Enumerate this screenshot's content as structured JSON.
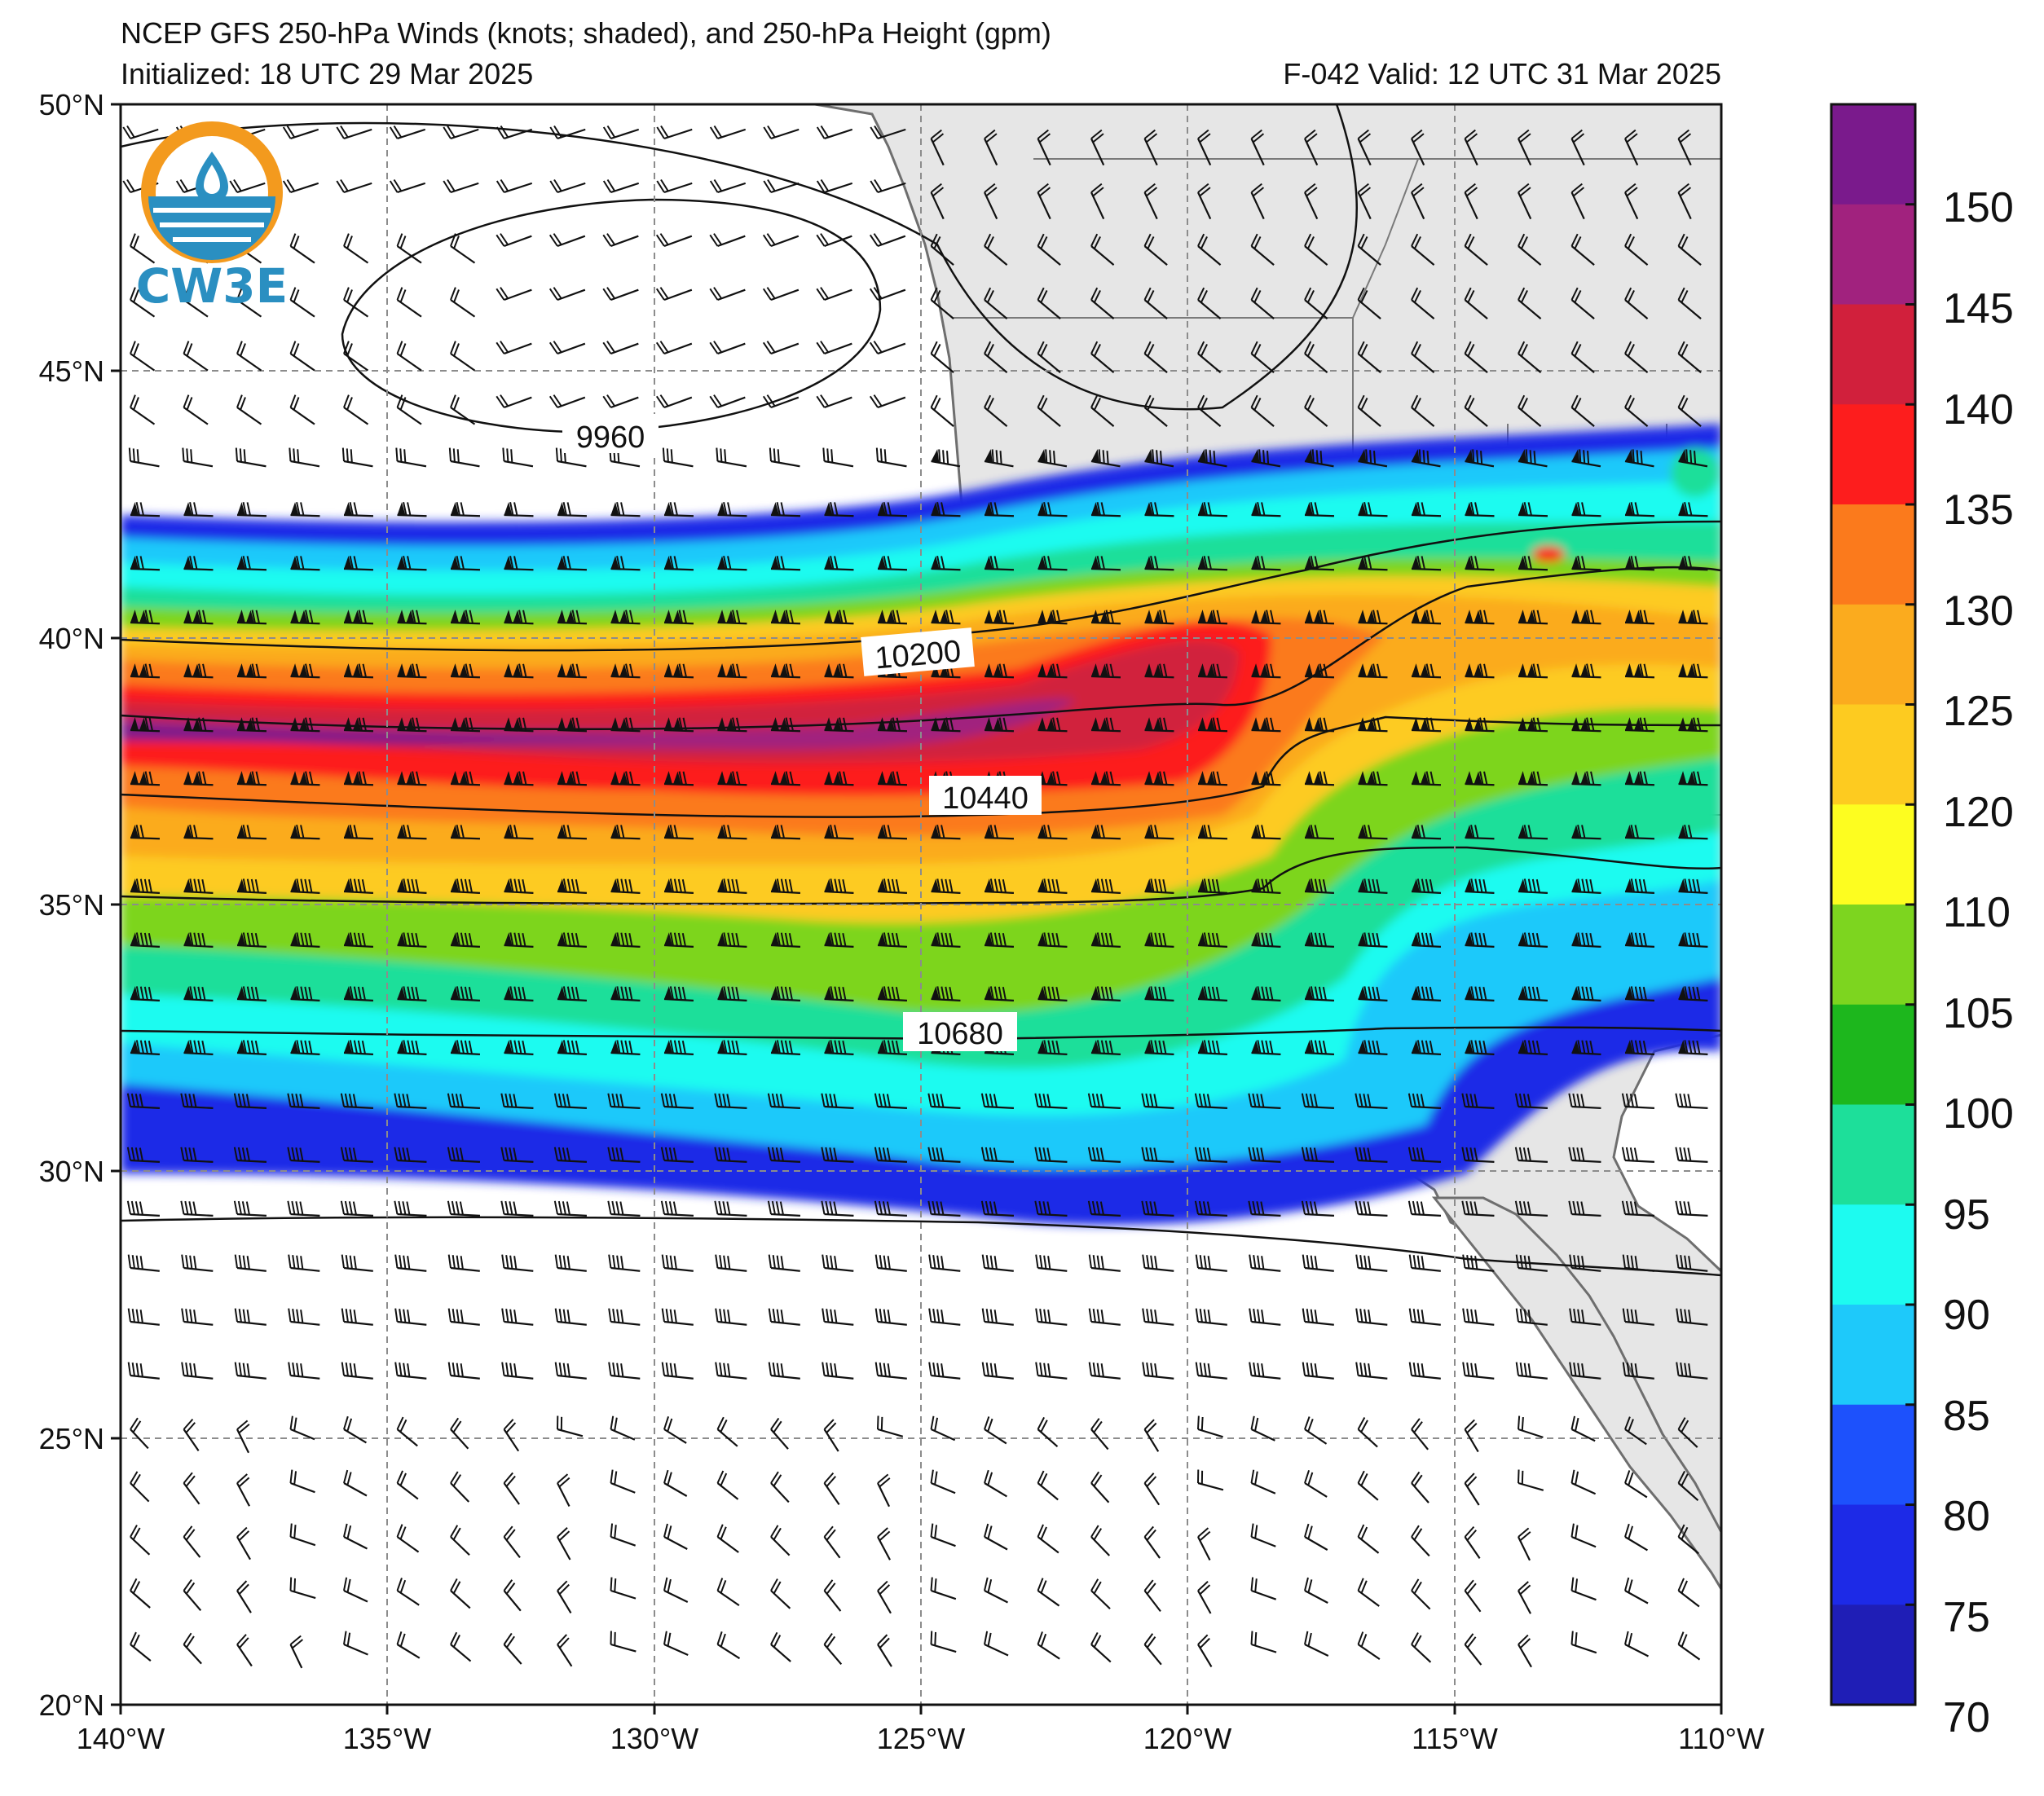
{
  "header": {
    "title": "NCEP GFS 250-hPa Winds (knots; shaded), and 250-hPa Height (gpm)",
    "initialized": "Initialized: 18 UTC 29 Mar 2025",
    "valid": "F-042  Valid: 12 UTC 31 Mar 2025"
  },
  "logo": {
    "text": "CW3E",
    "colors": [
      "#f39a1e",
      "#2a8fc1"
    ]
  },
  "axes": {
    "lat_labels": [
      "50°N",
      "45°N",
      "40°N",
      "35°N",
      "30°N",
      "25°N",
      "20°N"
    ],
    "lon_labels": [
      "140°W",
      "135°W",
      "130°W",
      "125°W",
      "120°W",
      "115°W",
      "110°W"
    ]
  },
  "contours": {
    "labels": [
      "9960",
      "10200",
      "10440",
      "10680"
    ]
  },
  "colorbar": {
    "tick_labels": [
      "150",
      "145",
      "140",
      "135",
      "130",
      "125",
      "120",
      "110",
      "105",
      "100",
      "95",
      "90",
      "85",
      "80",
      "75",
      "70"
    ],
    "colors": [
      "#7a1a8c",
      "#a1227e",
      "#d1203c",
      "#fd1d1d",
      "#fb7a1c",
      "#fbab1e",
      "#fdcb20",
      "#fdfd20",
      "#7dd51f",
      "#1db71d",
      "#1ddf9a",
      "#1dfbf0",
      "#1ec9fa",
      "#1d51fc",
      "#1d2ae7",
      "#1f1eb6"
    ]
  },
  "chart_data": {
    "type": "map",
    "map_extent": {
      "lon": [
        -140,
        -110
      ],
      "lat": [
        20,
        50
      ]
    },
    "units": "knots",
    "jet_core_max_kt": 150,
    "height_contours_gpm": [
      9960,
      10200,
      10440,
      10680
    ]
  }
}
